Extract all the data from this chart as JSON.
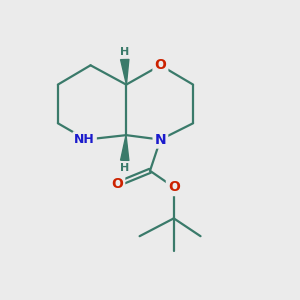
{
  "bg_color": "#ebebeb",
  "atom_colors": {
    "C": "#3a7a6a",
    "N": "#1a1acc",
    "O": "#cc2200",
    "H": "#3a7a6a"
  },
  "bond_color": "#3a7a6a",
  "bond_width": 1.6,
  "fig_size": [
    3.0,
    3.0
  ],
  "dpi": 100
}
